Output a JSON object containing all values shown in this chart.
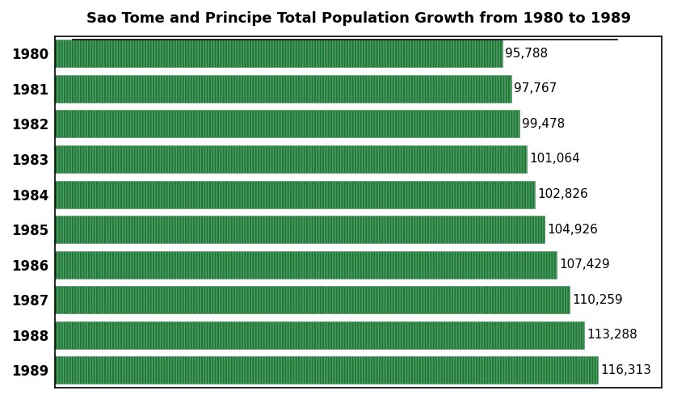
{
  "title": "Sao Tome and Principe Total Population Growth from 1980 to 1989",
  "years": [
    "1980",
    "1981",
    "1982",
    "1983",
    "1984",
    "1985",
    "1986",
    "1987",
    "1988",
    "1989"
  ],
  "values": [
    95788,
    97767,
    99478,
    101064,
    102826,
    104926,
    107429,
    110259,
    113288,
    116313
  ],
  "labels": [
    "95,788",
    "97,767",
    "99,478",
    "101,064",
    "102,826",
    "104,926",
    "107,429",
    "110,259",
    "113,288",
    "116,313"
  ],
  "bar_color": "#1a7a34",
  "bar_edge_color": "#5a9a6a",
  "background_color": "#ffffff",
  "text_color": "#000000",
  "title_fontsize": 13,
  "label_fontsize": 11,
  "year_fontsize": 12,
  "xlim_max": 130000,
  "figure_facecolor": "#ffffff",
  "axes_facecolor": "#ffffff",
  "border_color": "#000000"
}
